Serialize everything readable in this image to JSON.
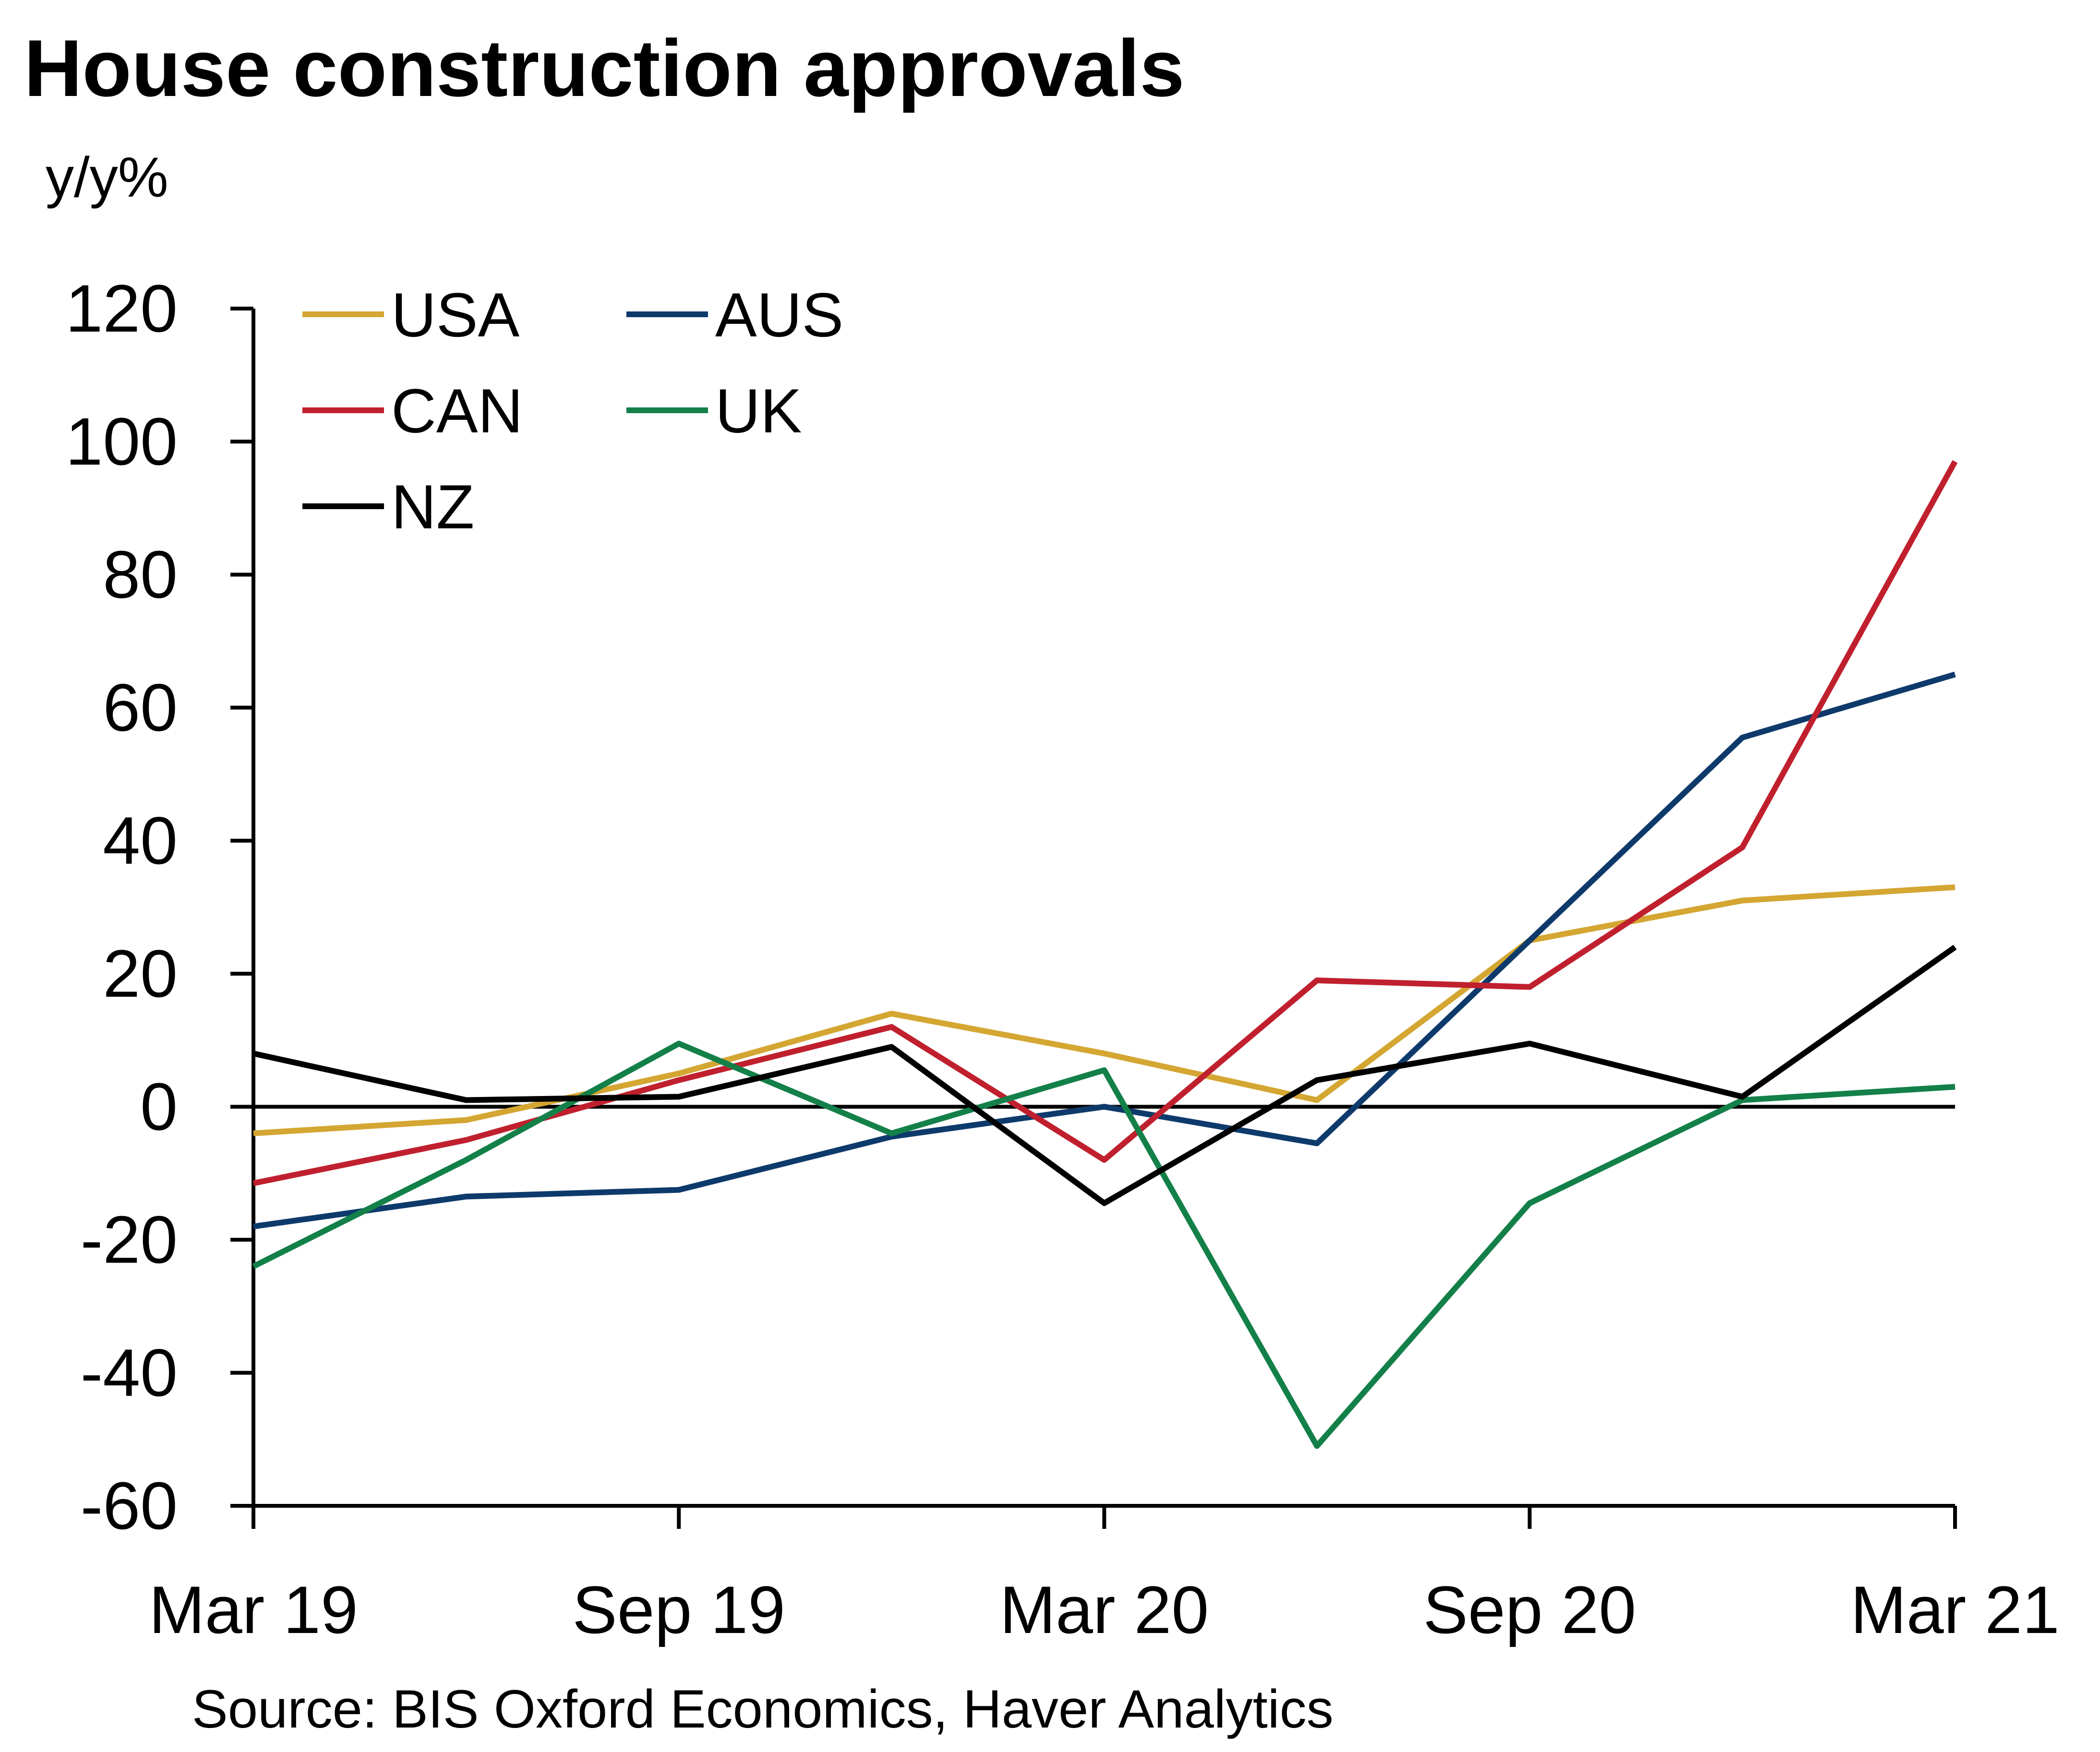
{
  "chart_data": {
    "type": "line",
    "title": "House construction approvals",
    "ylabel": "y/y%",
    "xlabel": "",
    "ylim": [
      -60,
      120
    ],
    "yticks": [
      -60,
      -40,
      -20,
      0,
      20,
      40,
      60,
      80,
      100,
      120
    ],
    "x": [
      "Mar 19",
      "Jun 19",
      "Sep 19",
      "Dec 19",
      "Mar 20",
      "Jun 20",
      "Sep 20",
      "Dec 20",
      "Mar 21"
    ],
    "xtick_labels": [
      "Mar 19",
      "Sep 19",
      "Mar 20",
      "Sep 20",
      "Mar 21"
    ],
    "zero_line": true,
    "grid": false,
    "legend_position": "top-left",
    "series": [
      {
        "name": "USA",
        "color": "#D4A632",
        "values": [
          -4,
          -2,
          5,
          14,
          8,
          1,
          25,
          31,
          33
        ]
      },
      {
        "name": "AUS",
        "color": "#0E3A6B",
        "values": [
          -18,
          -13.5,
          -12.5,
          -4.5,
          0,
          -5.5,
          25,
          55.5,
          65
        ]
      },
      {
        "name": "CAN",
        "color": "#C0202E",
        "values": [
          -11.5,
          -5,
          4,
          12,
          -8,
          19,
          18,
          39,
          97
        ]
      },
      {
        "name": "UK",
        "color": "#138049",
        "values": [
          -24,
          -8,
          9.5,
          -4,
          5.5,
          -51,
          -14.5,
          1,
          3
        ]
      },
      {
        "name": "NZ",
        "color": "#000000",
        "values": [
          8,
          1,
          1.5,
          9,
          -14.5,
          4,
          9.5,
          1.5,
          24
        ]
      }
    ],
    "source": "Source: BIS Oxford Economics, Haver Analytics"
  }
}
